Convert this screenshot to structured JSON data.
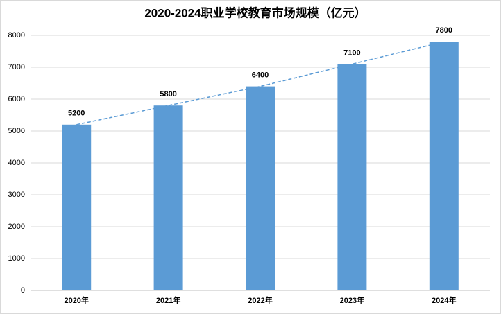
{
  "chart_data": {
    "type": "bar",
    "title": "2020-2024职业学校教育市场规模（亿元）",
    "categories": [
      "2020年",
      "2021年",
      "2022年",
      "2023年",
      "2024年"
    ],
    "values": [
      5200,
      5800,
      6400,
      7100,
      7800
    ],
    "color": "#5b9bd5",
    "ylim": [
      0,
      8000
    ],
    "yticks": [
      0,
      1000,
      2000,
      3000,
      4000,
      5000,
      6000,
      7000,
      8000
    ],
    "grid": true,
    "trendline": true,
    "trendline_color": "#5b9bd5"
  }
}
